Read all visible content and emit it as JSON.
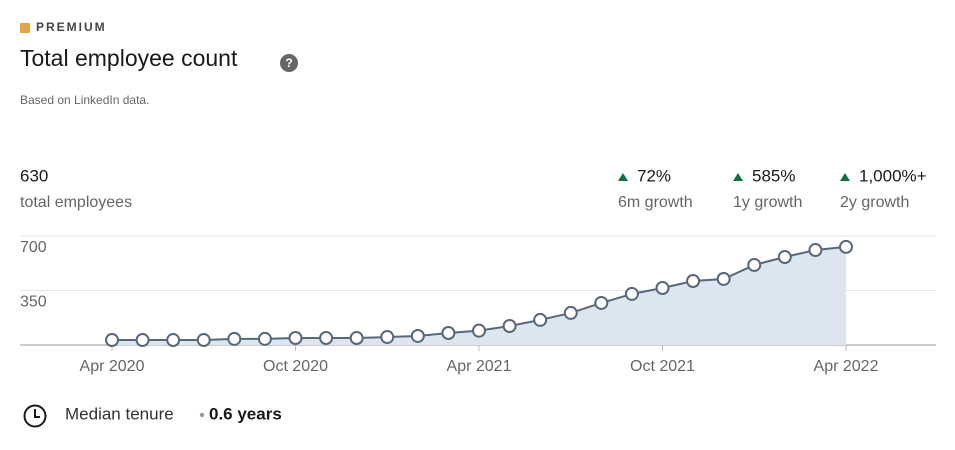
{
  "header": {
    "badge": "PREMIUM",
    "title": "Total employee count",
    "help": "?",
    "subtitle": "Based on LinkedIn data."
  },
  "stats": {
    "total": 630,
    "total_label": "total employees",
    "growth": [
      {
        "value": "72%",
        "label": "6m growth"
      },
      {
        "value": "585%",
        "label": "1y growth"
      },
      {
        "value": "1,000%+",
        "label": "2y growth"
      }
    ]
  },
  "chart_data": {
    "type": "area",
    "categories": [
      "Apr 2020",
      null,
      null,
      null,
      null,
      null,
      "Oct 2020",
      null,
      null,
      null,
      null,
      null,
      "Apr 2021",
      null,
      null,
      null,
      null,
      null,
      "Oct 2021",
      null,
      null,
      null,
      null,
      null,
      "Apr 2022"
    ],
    "series": [
      {
        "color": "#56687a",
        "values": [
          32,
          32,
          32,
          32,
          39,
          39,
          45,
          45,
          45,
          51,
          58,
          77,
          92,
          122,
          161,
          206,
          270,
          328,
          366,
          411,
          424,
          514,
          565,
          610,
          630
        ]
      }
    ],
    "ylim": [
      0,
      700
    ],
    "yticks": [
      350,
      700
    ],
    "grid": true
  },
  "footer": {
    "label": "Median tenure",
    "value": "0.6 years"
  }
}
